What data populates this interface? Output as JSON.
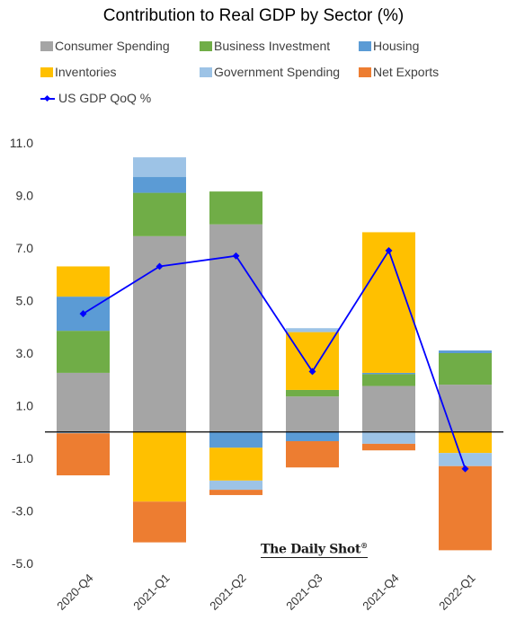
{
  "chart_data": {
    "type": "bar",
    "subtype": "stacked-bar-with-line",
    "title": "Contribution to Real GDP by Sector (%)",
    "xlabel": "",
    "ylabel": "",
    "categories": [
      "2020-Q4",
      "2021-Q1",
      "2021-Q2",
      "2021-Q3",
      "2021-Q4",
      "2022-Q1"
    ],
    "ylim": [
      -5.0,
      11.0
    ],
    "yticks": [
      "11.0",
      "9.0",
      "7.0",
      "5.0",
      "3.0",
      "1.0",
      "-1.0",
      "-3.0",
      "-5.0"
    ],
    "grid": false,
    "legend_position": "top",
    "series": [
      {
        "name": "Consumer Spending",
        "color": "#A5A5A5",
        "values": [
          2.25,
          7.45,
          7.9,
          1.35,
          1.75,
          1.8
        ]
      },
      {
        "name": "Business Investment",
        "color": "#70AD47",
        "values": [
          1.6,
          1.65,
          1.25,
          0.25,
          0.45,
          1.2
        ]
      },
      {
        "name": "Housing",
        "color": "#5B9BD5",
        "values": [
          1.3,
          0.6,
          -0.6,
          -0.35,
          0.05,
          0.1
        ]
      },
      {
        "name": "Inventories",
        "color": "#FFC000",
        "values": [
          1.15,
          -2.65,
          -1.25,
          2.2,
          5.35,
          -0.8
        ]
      },
      {
        "name": "Government Spending",
        "color": "#9DC3E6",
        "values": [
          -0.05,
          0.75,
          -0.35,
          0.15,
          -0.45,
          -0.5
        ]
      },
      {
        "name": "Net Exports",
        "color": "#ED7D31",
        "values": [
          -1.6,
          -1.55,
          -0.2,
          -1.0,
          -0.25,
          -3.2
        ]
      }
    ],
    "line": {
      "name": "US GDP QoQ %",
      "color": "#0000FF",
      "values": [
        4.5,
        6.3,
        6.7,
        2.3,
        6.9,
        -1.4
      ]
    }
  },
  "source": {
    "logo_text": "The Daily Shot",
    "logo_mark": "®"
  }
}
